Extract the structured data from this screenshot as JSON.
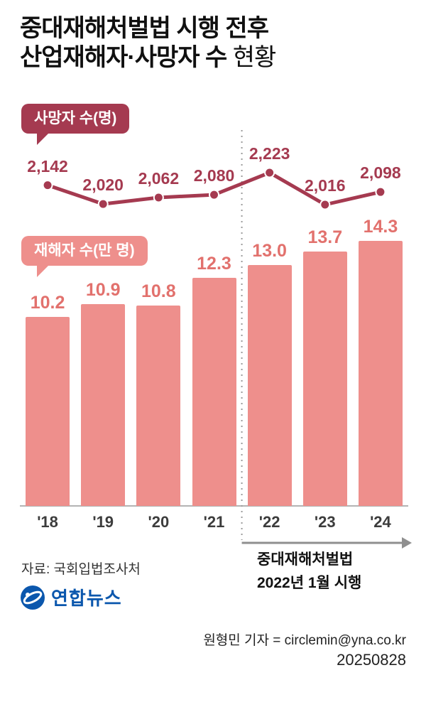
{
  "title": {
    "line1": "중대재해처벌법 시행 전후",
    "line2_bold": "산업재해자·사망자 수",
    "line2_light": " 현황"
  },
  "badges": {
    "deaths": "사망자 수(명)",
    "injured": "재해자 수(만 명)"
  },
  "chart_data": {
    "type": "combo",
    "categories": [
      "'18",
      "'19",
      "'20",
      "'21",
      "'22",
      "'23",
      "'24"
    ],
    "series": [
      {
        "name": "사망자 수(명)",
        "type": "line",
        "values": [
          2142,
          2020,
          2062,
          2080,
          2223,
          2016,
          2098
        ],
        "labels": [
          "2,142",
          "2,020",
          "2,062",
          "2,080",
          "2,223",
          "2,016",
          "2,098"
        ],
        "color": "#a53a50"
      },
      {
        "name": "재해자 수(만 명)",
        "type": "bar",
        "values": [
          10.2,
          10.9,
          10.8,
          12.3,
          13.0,
          13.7,
          14.3
        ],
        "labels": [
          "10.2",
          "10.9",
          "10.8",
          "12.3",
          "13.0",
          "13.7",
          "14.3"
        ],
        "color": "#ee8f8c"
      }
    ],
    "annotation": {
      "line_at_category": "'22",
      "text_line1": "중대재해처벌법",
      "text_line2": "2022년 1월 시행"
    },
    "legend_position": "in-chart speech bubbles",
    "grid": false
  },
  "footer": {
    "source": "자료: 국회입법조사처",
    "logo_text": "연합뉴스",
    "credit": "원형민 기자 = circlemin@yna.co.kr",
    "date": "20250828"
  },
  "colors": {
    "line": "#a53a50",
    "line_label": "#a53a50",
    "bar": "#ee8f8c",
    "bar_label": "#e2716d",
    "badge_deaths": "#a53a50",
    "badge_injured": "#ee8f8c",
    "axis_gray": "#b3b3b3",
    "dotted_gray": "#9b9b9b",
    "arrow_gray": "#8f8f8f",
    "logo_blue": "#0b57ad"
  }
}
